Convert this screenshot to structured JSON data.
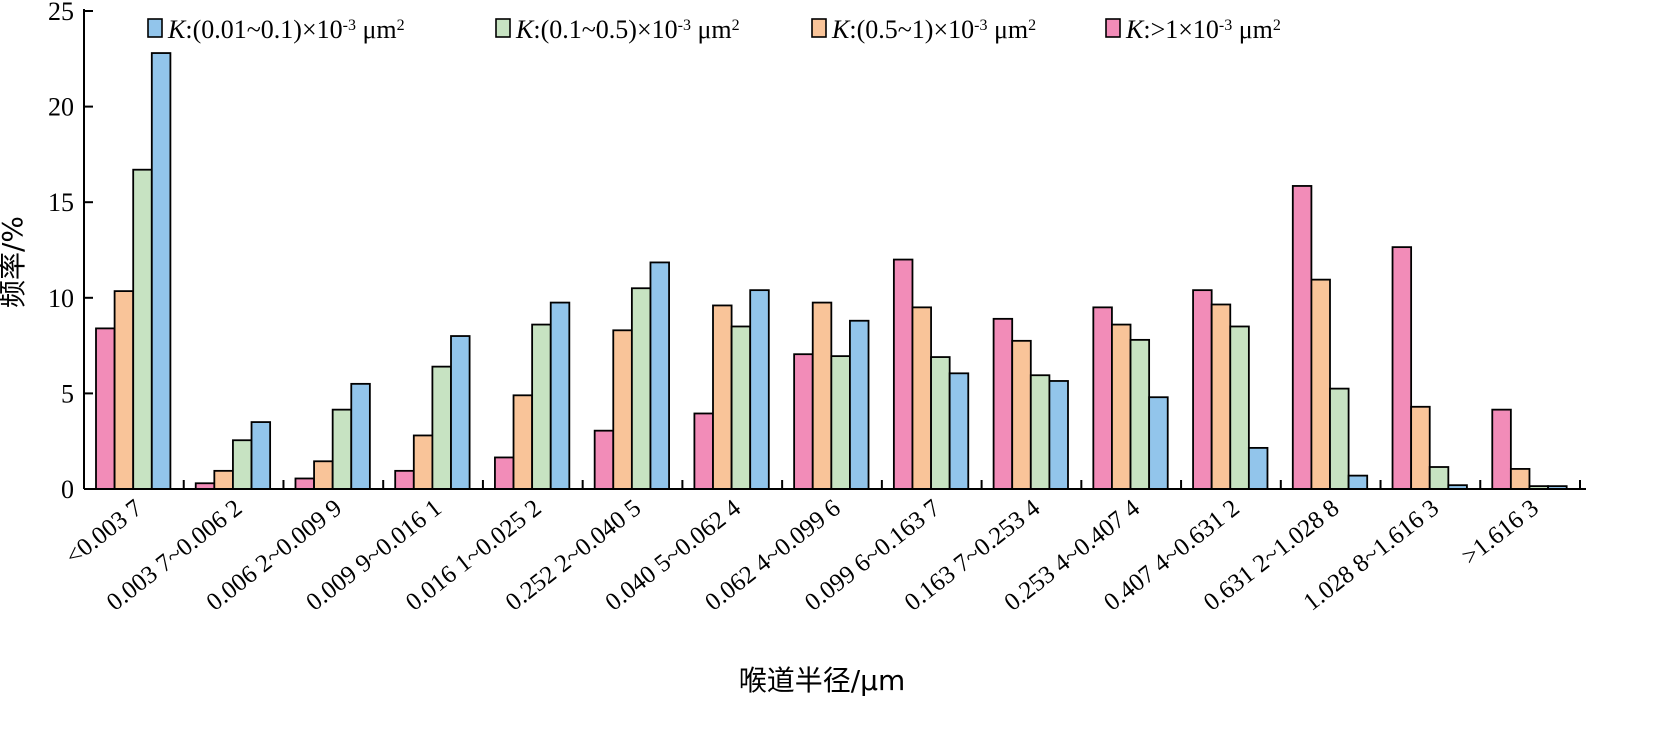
{
  "chart_data": {
    "type": "bar",
    "xlabel": "喉道半径/μm",
    "ylabel": "频率/%",
    "ylim": [
      0,
      25
    ],
    "yticks": [
      0,
      5,
      10,
      15,
      20,
      25
    ],
    "grid": false,
    "legend_position": "top",
    "categories": [
      "<0.003 7",
      "0.003 7~0.006 2",
      "0.006 2~0.009 9",
      "0.009 9~0.016 1",
      "0.016 1~0.025 2",
      "0.252 2~0.040 5",
      "0.040 5~0.062 4",
      "0.062 4~0.099 6",
      "0.099 6~0.163 7",
      "0.163 7~0.253 4",
      "0.253 4~0.407 4",
      "0.407 4~0.631 2",
      "0.631 2~1.028 8",
      "1.028 8~1.616 3",
      ">1.616 3"
    ],
    "series": [
      {
        "legend_parts": {
          "k": "K",
          "range": ":>1×10",
          "exp": "-3",
          "unit": " μm",
          "unit_exp": "2"
        },
        "color": "#f28cb8",
        "values": [
          8.4,
          0.3,
          0.55,
          0.95,
          1.65,
          3.05,
          3.95,
          7.05,
          12.0,
          8.9,
          9.5,
          10.4,
          15.85,
          12.65,
          4.15
        ]
      },
      {
        "legend_parts": {
          "k": "K",
          "range": ":(0.5~1)×10",
          "exp": "-3",
          "unit": " μm",
          "unit_exp": "2"
        },
        "color": "#f9c499",
        "values": [
          10.35,
          0.95,
          1.45,
          2.8,
          4.9,
          8.3,
          9.6,
          9.75,
          9.5,
          7.75,
          8.6,
          9.65,
          10.95,
          4.3,
          1.05
        ]
      },
      {
        "legend_parts": {
          "k": "K",
          "range": ":(0.1~0.5)×10",
          "exp": "-3",
          "unit": " μm",
          "unit_exp": "2"
        },
        "color": "#c7e3c2",
        "values": [
          16.7,
          2.55,
          4.15,
          6.4,
          8.6,
          10.5,
          8.5,
          6.95,
          6.9,
          5.95,
          7.8,
          8.5,
          5.25,
          1.15,
          0.15
        ]
      },
      {
        "legend_parts": {
          "k": "K",
          "range": ":(0.01~0.1)×10",
          "exp": "-3",
          "unit": " μm",
          "unit_exp": "2"
        },
        "color": "#92c5eb",
        "values": [
          22.8,
          3.5,
          5.5,
          8.0,
          9.75,
          11.85,
          10.4,
          8.8,
          6.05,
          5.65,
          4.8,
          2.15,
          0.7,
          0.2,
          0.15
        ]
      }
    ],
    "legend_order": [
      3,
      2,
      1,
      0
    ]
  }
}
